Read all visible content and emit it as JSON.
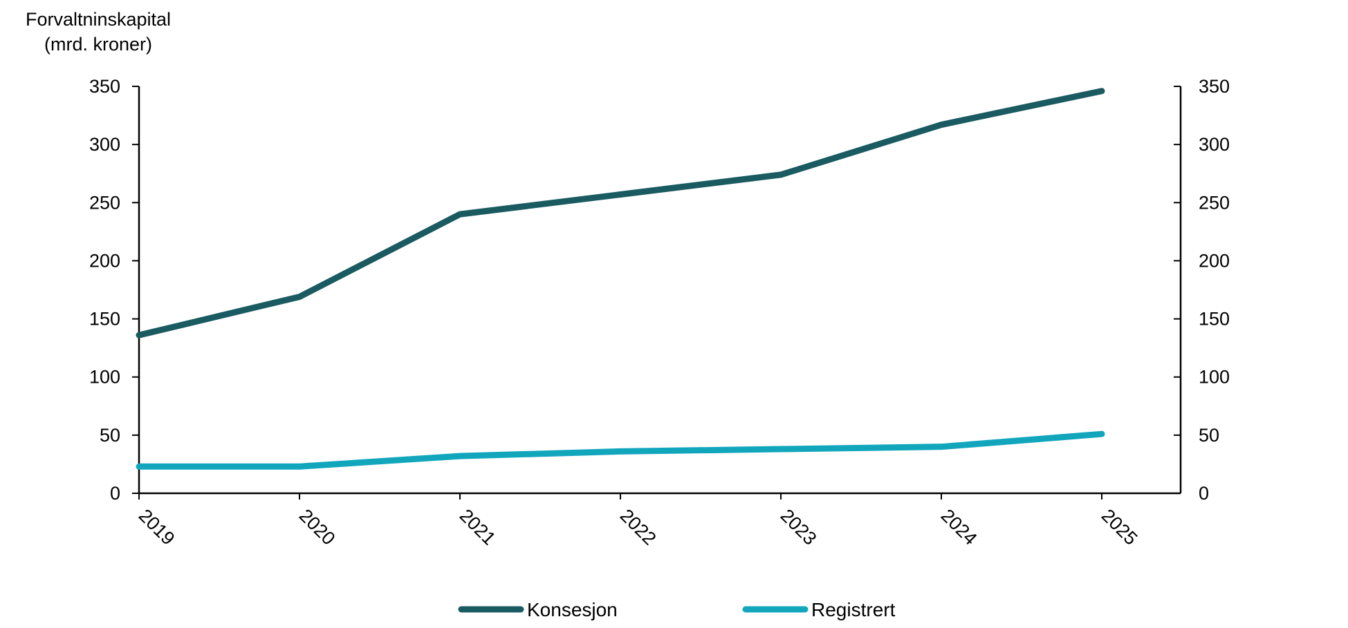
{
  "chart_data": {
    "type": "line",
    "ylabel": [
      "Forvaltninskapital",
      "(mrd. kroner)"
    ],
    "x": [
      "2019",
      "2020",
      "2021",
      "2022",
      "2023",
      "2024",
      "2025"
    ],
    "ylim": [
      0,
      350
    ],
    "yticks": [
      0,
      50,
      100,
      150,
      200,
      250,
      300,
      350
    ],
    "secondary_yaxis": true,
    "grid": false,
    "legend_position": "bottom",
    "series": [
      {
        "name": "Konsesjon",
        "color": "#1a5a61",
        "values": [
          136,
          169,
          240,
          257,
          274,
          317,
          346
        ]
      },
      {
        "name": "Registrert",
        "color": "#12a6bd",
        "values": [
          23,
          23,
          32,
          36,
          38,
          40,
          51
        ]
      }
    ]
  }
}
